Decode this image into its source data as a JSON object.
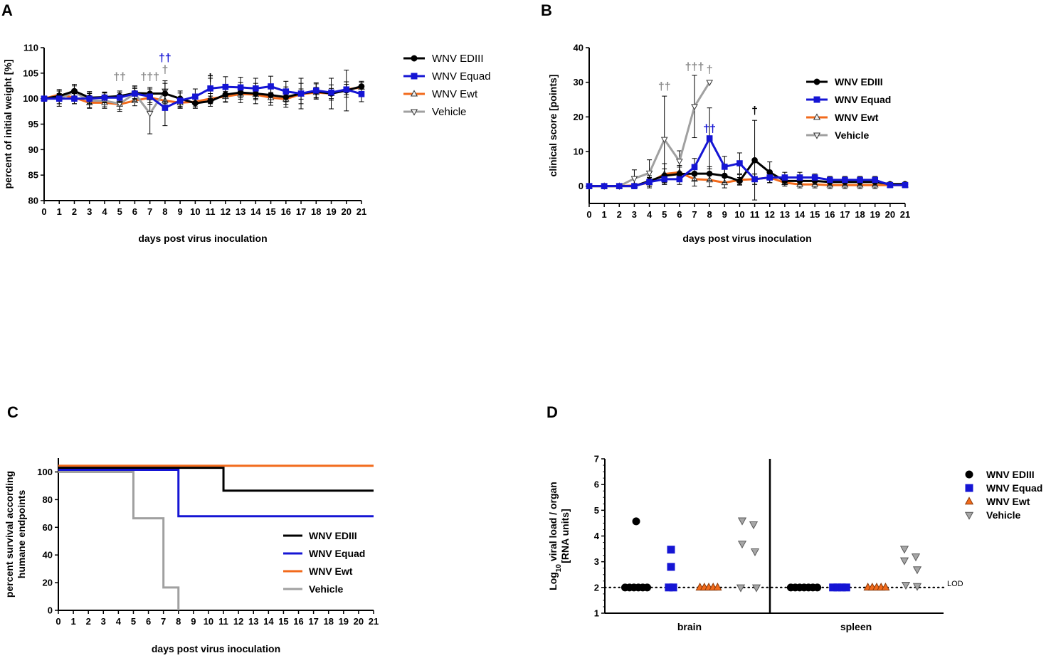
{
  "panels": {
    "A": {
      "letter": "A"
    },
    "B": {
      "letter": "B"
    },
    "C": {
      "letter": "C"
    },
    "D": {
      "letter": "D"
    }
  },
  "colors": {
    "WNV EDIII": "#000000",
    "WNV Equad": "#1515d4",
    "WNV Ewt": "#f26a1b",
    "Vehicle": "#a0a0a0",
    "dagger_gray": "#8c8c8c",
    "dagger_blue": "#1515d4",
    "dagger_black": "#000000"
  },
  "chart_data": [
    {
      "id": "A",
      "type": "line",
      "title": "",
      "xlabel": "days post virus inoculation",
      "ylabel": "percent of initial weight [%]",
      "xlim": [
        0,
        21
      ],
      "ylim": [
        80,
        110
      ],
      "yticks": [
        80,
        85,
        90,
        95,
        100,
        105,
        110
      ],
      "xticks": [
        0,
        1,
        2,
        3,
        4,
        5,
        6,
        7,
        8,
        9,
        10,
        11,
        12,
        13,
        14,
        15,
        16,
        17,
        18,
        19,
        20,
        21
      ],
      "legend": [
        "WNV EDIII",
        "WNV Equad",
        "WNV Ewt",
        "Vehicle"
      ],
      "series": [
        {
          "name": "WNV Ewt",
          "marker": "triangle-up",
          "x": [
            0,
            1,
            2,
            3,
            4,
            5,
            6,
            7,
            8,
            9,
            10,
            11,
            12,
            13,
            14,
            15,
            16,
            17,
            18,
            19,
            20,
            21
          ],
          "y": [
            100,
            100.8,
            100.2,
            99.2,
            99.2,
            98.9,
            99.6,
            100.2,
            99.6,
            99.2,
            99.4,
            100,
            100.4,
            100.9,
            100.8,
            100.2,
            99.9,
            100.9,
            101.2,
            101,
            101.8,
            102.2
          ],
          "err": [
            0.5,
            1,
            1.2,
            1,
            0.8,
            1,
            1,
            1,
            1,
            1,
            1,
            1,
            1,
            1,
            1,
            1,
            1,
            1,
            1,
            1,
            1,
            1
          ]
        },
        {
          "name": "Vehicle",
          "marker": "triangle-down",
          "x": [
            0,
            1,
            2,
            3,
            4,
            5,
            6,
            7,
            8
          ],
          "y": [
            100,
            100,
            101.3,
            99.6,
            99.6,
            99,
            101,
            97.1,
            101.5
          ],
          "err": [
            0.5,
            1.5,
            1.5,
            1.5,
            1.5,
            1.5,
            1.5,
            4,
            2
          ]
        },
        {
          "name": "WNV EDIII",
          "marker": "circle",
          "x": [
            0,
            1,
            2,
            3,
            4,
            5,
            6,
            7,
            8,
            9,
            10,
            11,
            12,
            13,
            14,
            15,
            16,
            17,
            18,
            19,
            20,
            21
          ],
          "y": [
            100,
            100.5,
            101.5,
            100.2,
            100.3,
            100.5,
            101.1,
            101,
            101,
            100,
            99.1,
            99.5,
            100.8,
            101.2,
            101,
            100.7,
            100.3,
            101,
            101.4,
            101,
            101.6,
            102.4
          ],
          "err": [
            0.5,
            1,
            1,
            1.2,
            1,
            1,
            1.2,
            1.2,
            2,
            1.5,
            1,
            1,
            1.5,
            2,
            2,
            2,
            2,
            3,
            1.5,
            3,
            4,
            1
          ]
        },
        {
          "name": "WNV Equad",
          "marker": "square",
          "x": [
            0,
            1,
            2,
            3,
            4,
            5,
            6,
            7,
            8,
            9,
            10,
            11,
            12,
            13,
            14,
            15,
            16,
            17,
            18,
            19,
            20,
            21
          ],
          "y": [
            100,
            100,
            100,
            100,
            100.2,
            100.2,
            101,
            100.4,
            98.2,
            99.6,
            100.4,
            102,
            102.3,
            102.2,
            102,
            102.4,
            101.4,
            101,
            101.6,
            101.2,
            101.8,
            100.9
          ],
          "err": [
            0.5,
            1,
            1,
            1,
            1,
            1,
            1,
            1.5,
            3.5,
            1.5,
            1.5,
            2,
            2,
            2,
            2,
            2,
            2,
            2,
            1.5,
            1.5,
            1.5,
            1.5
          ]
        }
      ],
      "annotations": [
        {
          "text": "††",
          "x": 5,
          "y": 103.6,
          "color": "gray"
        },
        {
          "text": "†††",
          "x": 7,
          "y": 103.6,
          "color": "gray"
        },
        {
          "text": "†",
          "x": 8,
          "y": 105,
          "color": "gray"
        },
        {
          "text": "††",
          "x": 8,
          "y": 107.3,
          "color": "blue"
        },
        {
          "text": "†",
          "x": 11,
          "y": 103.4,
          "color": "black"
        }
      ]
    },
    {
      "id": "B",
      "type": "line",
      "title": "",
      "xlabel": "days post virus inoculation",
      "ylabel": "clinical score [points]",
      "xlim": [
        0,
        21
      ],
      "ylim": [
        -5,
        40
      ],
      "yticks": [
        0,
        10,
        20,
        30,
        40
      ],
      "xticks": [
        0,
        1,
        2,
        3,
        4,
        5,
        6,
        7,
        8,
        9,
        10,
        11,
        12,
        13,
        14,
        15,
        16,
        17,
        18,
        19,
        20,
        21
      ],
      "legend": [
        "WNV EDIII",
        "WNV Equad",
        "WNV Ewt",
        "Vehicle"
      ],
      "series": [
        {
          "name": "WNV Ewt",
          "marker": "triangle-up",
          "x": [
            0,
            1,
            2,
            3,
            4,
            5,
            6,
            7,
            8,
            9,
            10,
            11,
            12,
            13,
            14,
            15,
            16,
            17,
            18,
            19,
            20,
            21
          ],
          "y": [
            0,
            0,
            0,
            0.2,
            1,
            3.5,
            4,
            2,
            1.8,
            1,
            1.8,
            2,
            2.5,
            1,
            0.5,
            0.5,
            0.3,
            0.3,
            0.3,
            0.3,
            0.3,
            0.3
          ],
          "err": [
            0,
            0,
            0,
            0.5,
            1.5,
            3,
            2,
            2,
            2,
            1.5,
            1.5,
            1.5,
            1.5,
            1,
            1,
            1,
            1,
            1,
            1,
            1,
            0.5,
            0.5
          ]
        },
        {
          "name": "Vehicle",
          "marker": "triangle-down",
          "x": [
            0,
            1,
            2,
            3,
            4,
            5,
            6,
            7,
            8
          ],
          "y": [
            0,
            0,
            0,
            2.2,
            3.8,
            13.5,
            7.2,
            23,
            30
          ],
          "err": [
            0,
            0,
            0,
            2.5,
            3.8,
            12.5,
            3,
            9,
            0
          ]
        },
        {
          "name": "WNV EDIII",
          "marker": "circle",
          "x": [
            0,
            1,
            2,
            3,
            4,
            5,
            6,
            7,
            8,
            9,
            10,
            11,
            12,
            13,
            14,
            15,
            16,
            17,
            18,
            19,
            20,
            21
          ],
          "y": [
            0,
            0,
            0,
            0,
            1.5,
            3,
            3.5,
            3.6,
            3.6,
            3,
            1.5,
            7.5,
            4,
            1.5,
            1.5,
            1.5,
            1.2,
            1.2,
            1.2,
            1.2,
            0.6,
            0.6
          ],
          "err": [
            0,
            0,
            0,
            0,
            1.5,
            2,
            2,
            2,
            2,
            2,
            1,
            11.5,
            3,
            1,
            1,
            1,
            1,
            1,
            1,
            1,
            0.5,
            0.5
          ]
        },
        {
          "name": "WNV Equad",
          "marker": "square",
          "x": [
            0,
            1,
            2,
            3,
            4,
            5,
            6,
            7,
            8,
            9,
            10,
            11,
            12,
            13,
            14,
            15,
            16,
            17,
            18,
            19,
            20,
            21
          ],
          "y": [
            0,
            0,
            0,
            0,
            1.2,
            2,
            2,
            5.5,
            13.8,
            5.6,
            6.6,
            2,
            2.5,
            2.5,
            2.5,
            2.5,
            1.8,
            1.8,
            1.8,
            1.8,
            0.3,
            0.3
          ],
          "err": [
            0,
            0,
            0,
            0,
            1.2,
            1.5,
            1.5,
            2.5,
            8.8,
            3,
            3,
            1.5,
            1.5,
            1.5,
            1.5,
            1,
            1,
            1,
            1,
            1,
            0.5,
            0.5
          ]
        }
      ],
      "annotations": [
        {
          "text": "††",
          "x": 5,
          "y": 27.8,
          "color": "gray"
        },
        {
          "text": "†††",
          "x": 7,
          "y": 33.4,
          "color": "gray"
        },
        {
          "text": "†",
          "x": 8,
          "y": 32.6,
          "color": "gray"
        },
        {
          "text": "††",
          "x": 8,
          "y": 15.5,
          "color": "blue"
        },
        {
          "text": "†",
          "x": 11,
          "y": 20.8,
          "color": "black"
        }
      ]
    },
    {
      "id": "C",
      "type": "line",
      "title": "",
      "xlabel": "days post virus inoculation",
      "ylabel": [
        "percent survival according",
        "humane endpoints"
      ],
      "xlim": [
        0,
        21
      ],
      "ylim": [
        0,
        110
      ],
      "yticks": [
        0,
        20,
        40,
        60,
        80,
        100
      ],
      "xticks": [
        0,
        1,
        2,
        3,
        4,
        5,
        6,
        7,
        8,
        9,
        10,
        11,
        12,
        13,
        14,
        15,
        16,
        17,
        18,
        19,
        20,
        21
      ],
      "legend": [
        "WNV EDIII",
        "WNV Equad",
        "WNV Ewt",
        "Vehicle"
      ],
      "series": [
        {
          "name": "WNV Ewt",
          "step": true,
          "x": [
            0,
            21
          ],
          "y": [
            104.5,
            104.5
          ]
        },
        {
          "name": "WNV EDIII",
          "step": true,
          "x": [
            0,
            11,
            21
          ],
          "y": [
            103,
            86.5,
            86.5
          ]
        },
        {
          "name": "WNV Equad",
          "step": true,
          "x": [
            0,
            8,
            21
          ],
          "y": [
            101.5,
            68,
            68
          ]
        },
        {
          "name": "Vehicle",
          "step": true,
          "x": [
            0,
            5,
            7,
            8
          ],
          "y": [
            100,
            66.5,
            16.5,
            0
          ]
        }
      ]
    },
    {
      "id": "D",
      "type": "scatter",
      "title": "",
      "xlabel": "",
      "ylabel": [
        "Log10 viral load / organ",
        "[RNA units]"
      ],
      "ylim": [
        1,
        7
      ],
      "yticks": [
        1,
        2,
        3,
        4,
        5,
        6,
        7
      ],
      "categories": [
        "brain",
        "spleen"
      ],
      "lod": 2,
      "lod_label": "LOD",
      "legend": [
        "WNV EDIII",
        "WNV Equad",
        "WNV Ewt",
        "Vehicle"
      ],
      "series": [
        {
          "name": "WNV EDIII",
          "marker": "circle",
          "brain": [
            4.57,
            2,
            2,
            2,
            2,
            2,
            2
          ],
          "spleen": [
            2,
            2,
            2,
            2,
            2,
            2,
            2
          ]
        },
        {
          "name": "WNV Equad",
          "marker": "square",
          "brain": [
            3.47,
            2.8,
            2,
            2
          ],
          "spleen": [
            2,
            2,
            2,
            2
          ]
        },
        {
          "name": "WNV Ewt",
          "marker": "triangle-up",
          "brain": [
            2,
            2,
            2,
            2,
            2
          ],
          "spleen": [
            2,
            2,
            2,
            2,
            2
          ]
        },
        {
          "name": "Vehicle",
          "marker": "triangle-down",
          "brain": [
            4.6,
            4.45,
            3.7,
            3.4,
            2,
            2
          ],
          "spleen": [
            3.5,
            3.2,
            3.05,
            2.7,
            2.1,
            2.05
          ]
        }
      ]
    }
  ]
}
